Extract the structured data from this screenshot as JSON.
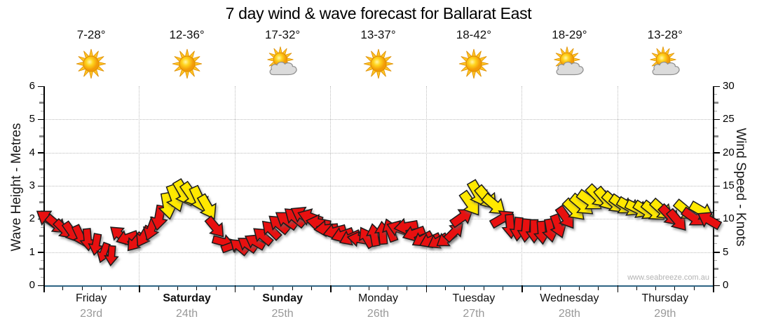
{
  "title": "7 day wind & wave forecast for Ballarat East",
  "watermark": "www.seabreeze.com.au",
  "left_axis": {
    "label": "Wave Height - Metres",
    "min": 0,
    "max": 6,
    "tick_step": 1
  },
  "right_axis": {
    "label": "Wind Speed - Knots",
    "min": 0,
    "max": 30,
    "tick_step": 5
  },
  "colors": {
    "low_wind": "#e81010",
    "high_wind": "#ffe800",
    "arrow_outline": "#1b1b1b",
    "grid": "#bdbdbd",
    "bottom_axis": "#2d6484",
    "axis": "#000000",
    "day_date": "#999999",
    "watermark": "#b3b3b3"
  },
  "chart_data": {
    "type": "wind-arrow-series",
    "interval_hours": 2,
    "points_per_day": 12,
    "color_threshold_knots": 11,
    "speed_axis": "Wind Speed - Knots (right axis 0-30), wave axis left 0-6 m",
    "legend_note": "red arrows = lighter wind, yellow arrows = 11+ knots; arrow rotation = wind direction",
    "days": [
      {
        "name": "Friday",
        "date": "23rd",
        "temp": "7-28°",
        "icon": "sunny",
        "weekend": false,
        "speeds": [
          10,
          9.2,
          8.5,
          8,
          7.5,
          7,
          6.2,
          5,
          4.6,
          7.6,
          7.2,
          6.6
        ],
        "dirs": [
          -145,
          40,
          45,
          55,
          65,
          85,
          100,
          110,
          95,
          -140,
          160,
          130
        ]
      },
      {
        "name": "Saturday",
        "date": "24th",
        "temp": "12-36°",
        "icon": "sunny",
        "weekend": true,
        "speeds": [
          7.4,
          8.6,
          10.2,
          12,
          13.2,
          14,
          13.6,
          13,
          11.8,
          8.8,
          6.6,
          5.9
        ],
        "dirs": [
          120,
          110,
          100,
          80,
          70,
          60,
          55,
          65,
          60,
          50,
          15,
          -20
        ]
      },
      {
        "name": "Sunday",
        "date": "25th",
        "temp": "17-32°",
        "icon": "partly-cloudy",
        "weekend": true,
        "speeds": [
          5.8,
          6.1,
          6.6,
          7.4,
          8.4,
          9.2,
          9.8,
          10.3,
          10.6,
          10.2,
          9.4,
          8.6
        ],
        "dirs": [
          -140,
          -145,
          -150,
          -140,
          -135,
          -140,
          -145,
          -140,
          -150,
          -160,
          -170,
          175
        ]
      },
      {
        "name": "Monday",
        "date": "26th",
        "temp": "13-37°",
        "icon": "sunny",
        "weekend": false,
        "speeds": [
          8.1,
          7.6,
          7.2,
          7,
          7.2,
          7.5,
          7.8,
          8.2,
          8.6,
          8.9,
          7.8,
          7
        ],
        "dirs": [
          165,
          160,
          155,
          -170,
          -120,
          -100,
          -95,
          -110,
          -160,
          170,
          160,
          150
        ]
      },
      {
        "name": "Tuesday",
        "date": "27th",
        "temp": "18-42°",
        "icon": "sunny",
        "weekend": false,
        "speeds": [
          6.8,
          6.7,
          7,
          8,
          10.2,
          12.4,
          13.8,
          13.2,
          12.2,
          10,
          9,
          8.6
        ],
        "dirs": [
          155,
          150,
          145,
          -45,
          -35,
          55,
          60,
          50,
          40,
          -30,
          85,
          95
        ]
      },
      {
        "name": "Wednesday",
        "date": "28th",
        "temp": "18-29°",
        "icon": "partly-cloudy",
        "weekend": false,
        "speeds": [
          8.4,
          8.2,
          8,
          8.3,
          9,
          10.2,
          11.4,
          12.2,
          12.8,
          13.4,
          13,
          12.5
        ],
        "dirs": [
          95,
          90,
          85,
          80,
          70,
          55,
          45,
          40,
          35,
          45,
          50,
          42
        ]
      },
      {
        "name": "Thursday",
        "date": "29th",
        "temp": "13-28°",
        "icon": "partly-cloudy",
        "weekend": false,
        "speeds": [
          12.2,
          11.8,
          11.5,
          11.3,
          11.2,
          11.4,
          10.6,
          9.8,
          11.3,
          10.2,
          11.2,
          9.8
        ],
        "dirs": [
          35,
          30,
          26,
          32,
          38,
          42,
          46,
          50,
          40,
          35,
          30,
          -150
        ]
      }
    ]
  }
}
